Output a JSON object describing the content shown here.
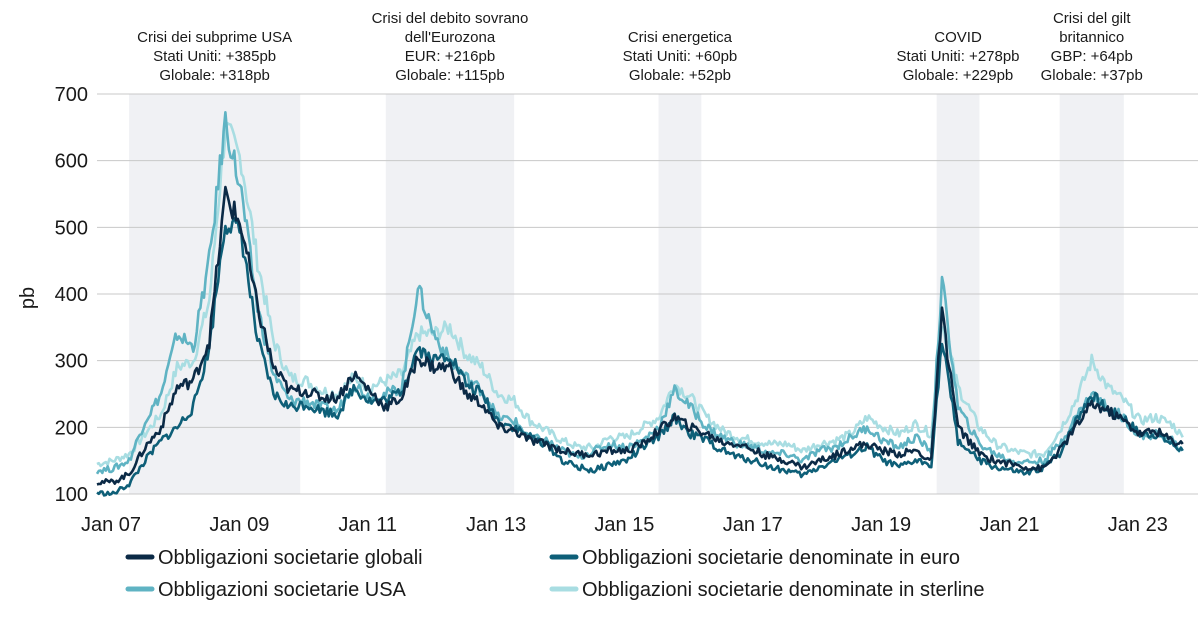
{
  "chart_data": {
    "type": "line",
    "ylabel": "pb",
    "ylim": [
      100,
      700
    ],
    "yticks": [
      100,
      200,
      300,
      400,
      500,
      600,
      700
    ],
    "xlim": [
      "2007-01",
      "2024-01"
    ],
    "xticks": [
      "Jan 07",
      "Jan 09",
      "Jan 11",
      "Jan 13",
      "Jan 15",
      "Jan 17",
      "Jan 19",
      "Jan 21",
      "Jan 23"
    ],
    "grid": "horizontal",
    "legend_position": "bottom",
    "colors": {
      "global": "#0b2a46",
      "euro": "#0e5f78",
      "usa": "#5fb3c3",
      "sterling": "#a8dde2",
      "shade": "#f0f1f4"
    },
    "crises": [
      {
        "start": "2007-07",
        "end": "2010-03",
        "lines": [
          "Crisi dei subprime USA",
          "Stati Uniti: +385pb",
          "Globale: +318pb"
        ]
      },
      {
        "start": "2011-07",
        "end": "2013-07",
        "lines": [
          "Crisi del debito sovrano",
          "dell'Eurozona",
          "EUR: +216pb",
          "Globale: +115pb"
        ]
      },
      {
        "start": "2015-10",
        "end": "2016-06",
        "lines": [
          "Crisi energetica",
          "Stati Uniti: +60pb",
          "Globale: +52pb"
        ]
      },
      {
        "start": "2020-02",
        "end": "2020-10",
        "lines": [
          "COVID",
          "Stati Uniti: +278pb",
          "Globale: +229pb"
        ]
      },
      {
        "start": "2022-01",
        "end": "2023-01",
        "lines": [
          "Crisi del gilt",
          "britannico",
          "GBP: +64pb",
          "Globale: +37pb"
        ]
      }
    ],
    "x": [
      "2007-01",
      "2007-04",
      "2007-07",
      "2007-10",
      "2008-01",
      "2008-04",
      "2008-07",
      "2008-10",
      "2009-01",
      "2009-04",
      "2009-07",
      "2009-10",
      "2010-01",
      "2010-04",
      "2010-07",
      "2010-10",
      "2011-01",
      "2011-04",
      "2011-07",
      "2011-10",
      "2012-01",
      "2012-04",
      "2012-07",
      "2012-10",
      "2013-01",
      "2013-04",
      "2013-07",
      "2013-10",
      "2014-01",
      "2014-04",
      "2014-07",
      "2014-10",
      "2015-01",
      "2015-04",
      "2015-07",
      "2015-10",
      "2016-01",
      "2016-04",
      "2016-07",
      "2016-10",
      "2017-01",
      "2017-04",
      "2017-07",
      "2017-10",
      "2018-01",
      "2018-04",
      "2018-07",
      "2018-10",
      "2019-01",
      "2019-04",
      "2019-07",
      "2019-10",
      "2020-01",
      "2020-03",
      "2020-06",
      "2020-10",
      "2021-01",
      "2021-04",
      "2021-07",
      "2021-10",
      "2022-01",
      "2022-04",
      "2022-07",
      "2022-10",
      "2023-01",
      "2023-04",
      "2023-07",
      "2023-10",
      "2023-12"
    ],
    "series": [
      {
        "key": "global",
        "name": "Obbligazioni societarie globali",
        "values": [
          118,
          118,
          130,
          170,
          200,
          260,
          270,
          330,
          550,
          500,
          380,
          290,
          255,
          255,
          245,
          245,
          280,
          255,
          230,
          245,
          305,
          290,
          290,
          250,
          235,
          200,
          195,
          180,
          175,
          165,
          160,
          160,
          165,
          165,
          175,
          195,
          215,
          200,
          190,
          178,
          175,
          165,
          155,
          150,
          140,
          150,
          158,
          170,
          175,
          165,
          160,
          165,
          150,
          370,
          200,
          160,
          150,
          145,
          140,
          138,
          165,
          200,
          235,
          225,
          210,
          190,
          195,
          180,
          175
        ]
      },
      {
        "key": "euro",
        "name": "Obbligazioni societarie denominate in euro",
        "values": [
          102,
          100,
          115,
          150,
          180,
          200,
          230,
          320,
          510,
          490,
          330,
          250,
          230,
          235,
          225,
          220,
          260,
          240,
          240,
          255,
          320,
          300,
          310,
          265,
          250,
          210,
          200,
          185,
          175,
          150,
          140,
          135,
          145,
          150,
          170,
          185,
          215,
          190,
          180,
          165,
          155,
          150,
          140,
          135,
          128,
          140,
          150,
          160,
          170,
          150,
          140,
          150,
          145,
          330,
          180,
          150,
          140,
          135,
          130,
          140,
          160,
          210,
          250,
          225,
          215,
          190,
          190,
          175,
          165
        ]
      },
      {
        "key": "usa",
        "name": "Obbligazioni societarie USA",
        "values": [
          135,
          138,
          150,
          210,
          250,
          340,
          320,
          450,
          660,
          550,
          380,
          280,
          240,
          240,
          230,
          225,
          265,
          245,
          250,
          260,
          410,
          340,
          300,
          275,
          255,
          215,
          210,
          185,
          180,
          165,
          155,
          165,
          175,
          170,
          180,
          200,
          255,
          230,
          200,
          185,
          175,
          170,
          160,
          160,
          150,
          165,
          170,
          185,
          200,
          180,
          170,
          185,
          165,
          420,
          230,
          175,
          160,
          150,
          148,
          150,
          175,
          215,
          250,
          230,
          215,
          185,
          190,
          180,
          165
        ]
      },
      {
        "key": "sterling",
        "name": "Obbligazioni societarie denominate in sterline",
        "values": [
          145,
          150,
          160,
          190,
          220,
          290,
          300,
          390,
          650,
          600,
          450,
          330,
          275,
          270,
          255,
          250,
          275,
          260,
          270,
          280,
          340,
          340,
          350,
          310,
          290,
          250,
          240,
          210,
          195,
          180,
          170,
          170,
          185,
          185,
          200,
          215,
          265,
          245,
          215,
          195,
          185,
          180,
          175,
          175,
          165,
          175,
          180,
          190,
          215,
          200,
          190,
          205,
          190,
          360,
          260,
          200,
          175,
          165,
          160,
          160,
          195,
          240,
          300,
          260,
          240,
          210,
          215,
          205,
          185
        ]
      }
    ]
  }
}
